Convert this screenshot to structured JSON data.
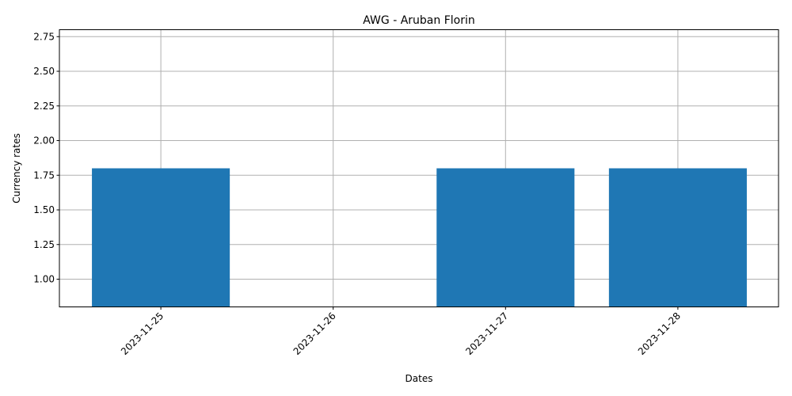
{
  "chart_data": {
    "type": "bar",
    "title": "AWG - Aruban Florin",
    "xlabel": "Dates",
    "ylabel": "Currency rates",
    "categories": [
      "2023-11-25",
      "2023-11-26",
      "2023-11-27",
      "2023-11-28"
    ],
    "values": [
      1.8,
      null,
      1.8,
      1.8
    ],
    "ylim": [
      0.8,
      2.8
    ],
    "yticks": [
      "1.00",
      "1.25",
      "1.50",
      "1.75",
      "2.00",
      "2.25",
      "2.50",
      "2.75"
    ],
    "grid": true,
    "bar_color": "#1f77b4",
    "grid_color": "#b0b0b0",
    "xtick_rotation_deg": 45
  }
}
